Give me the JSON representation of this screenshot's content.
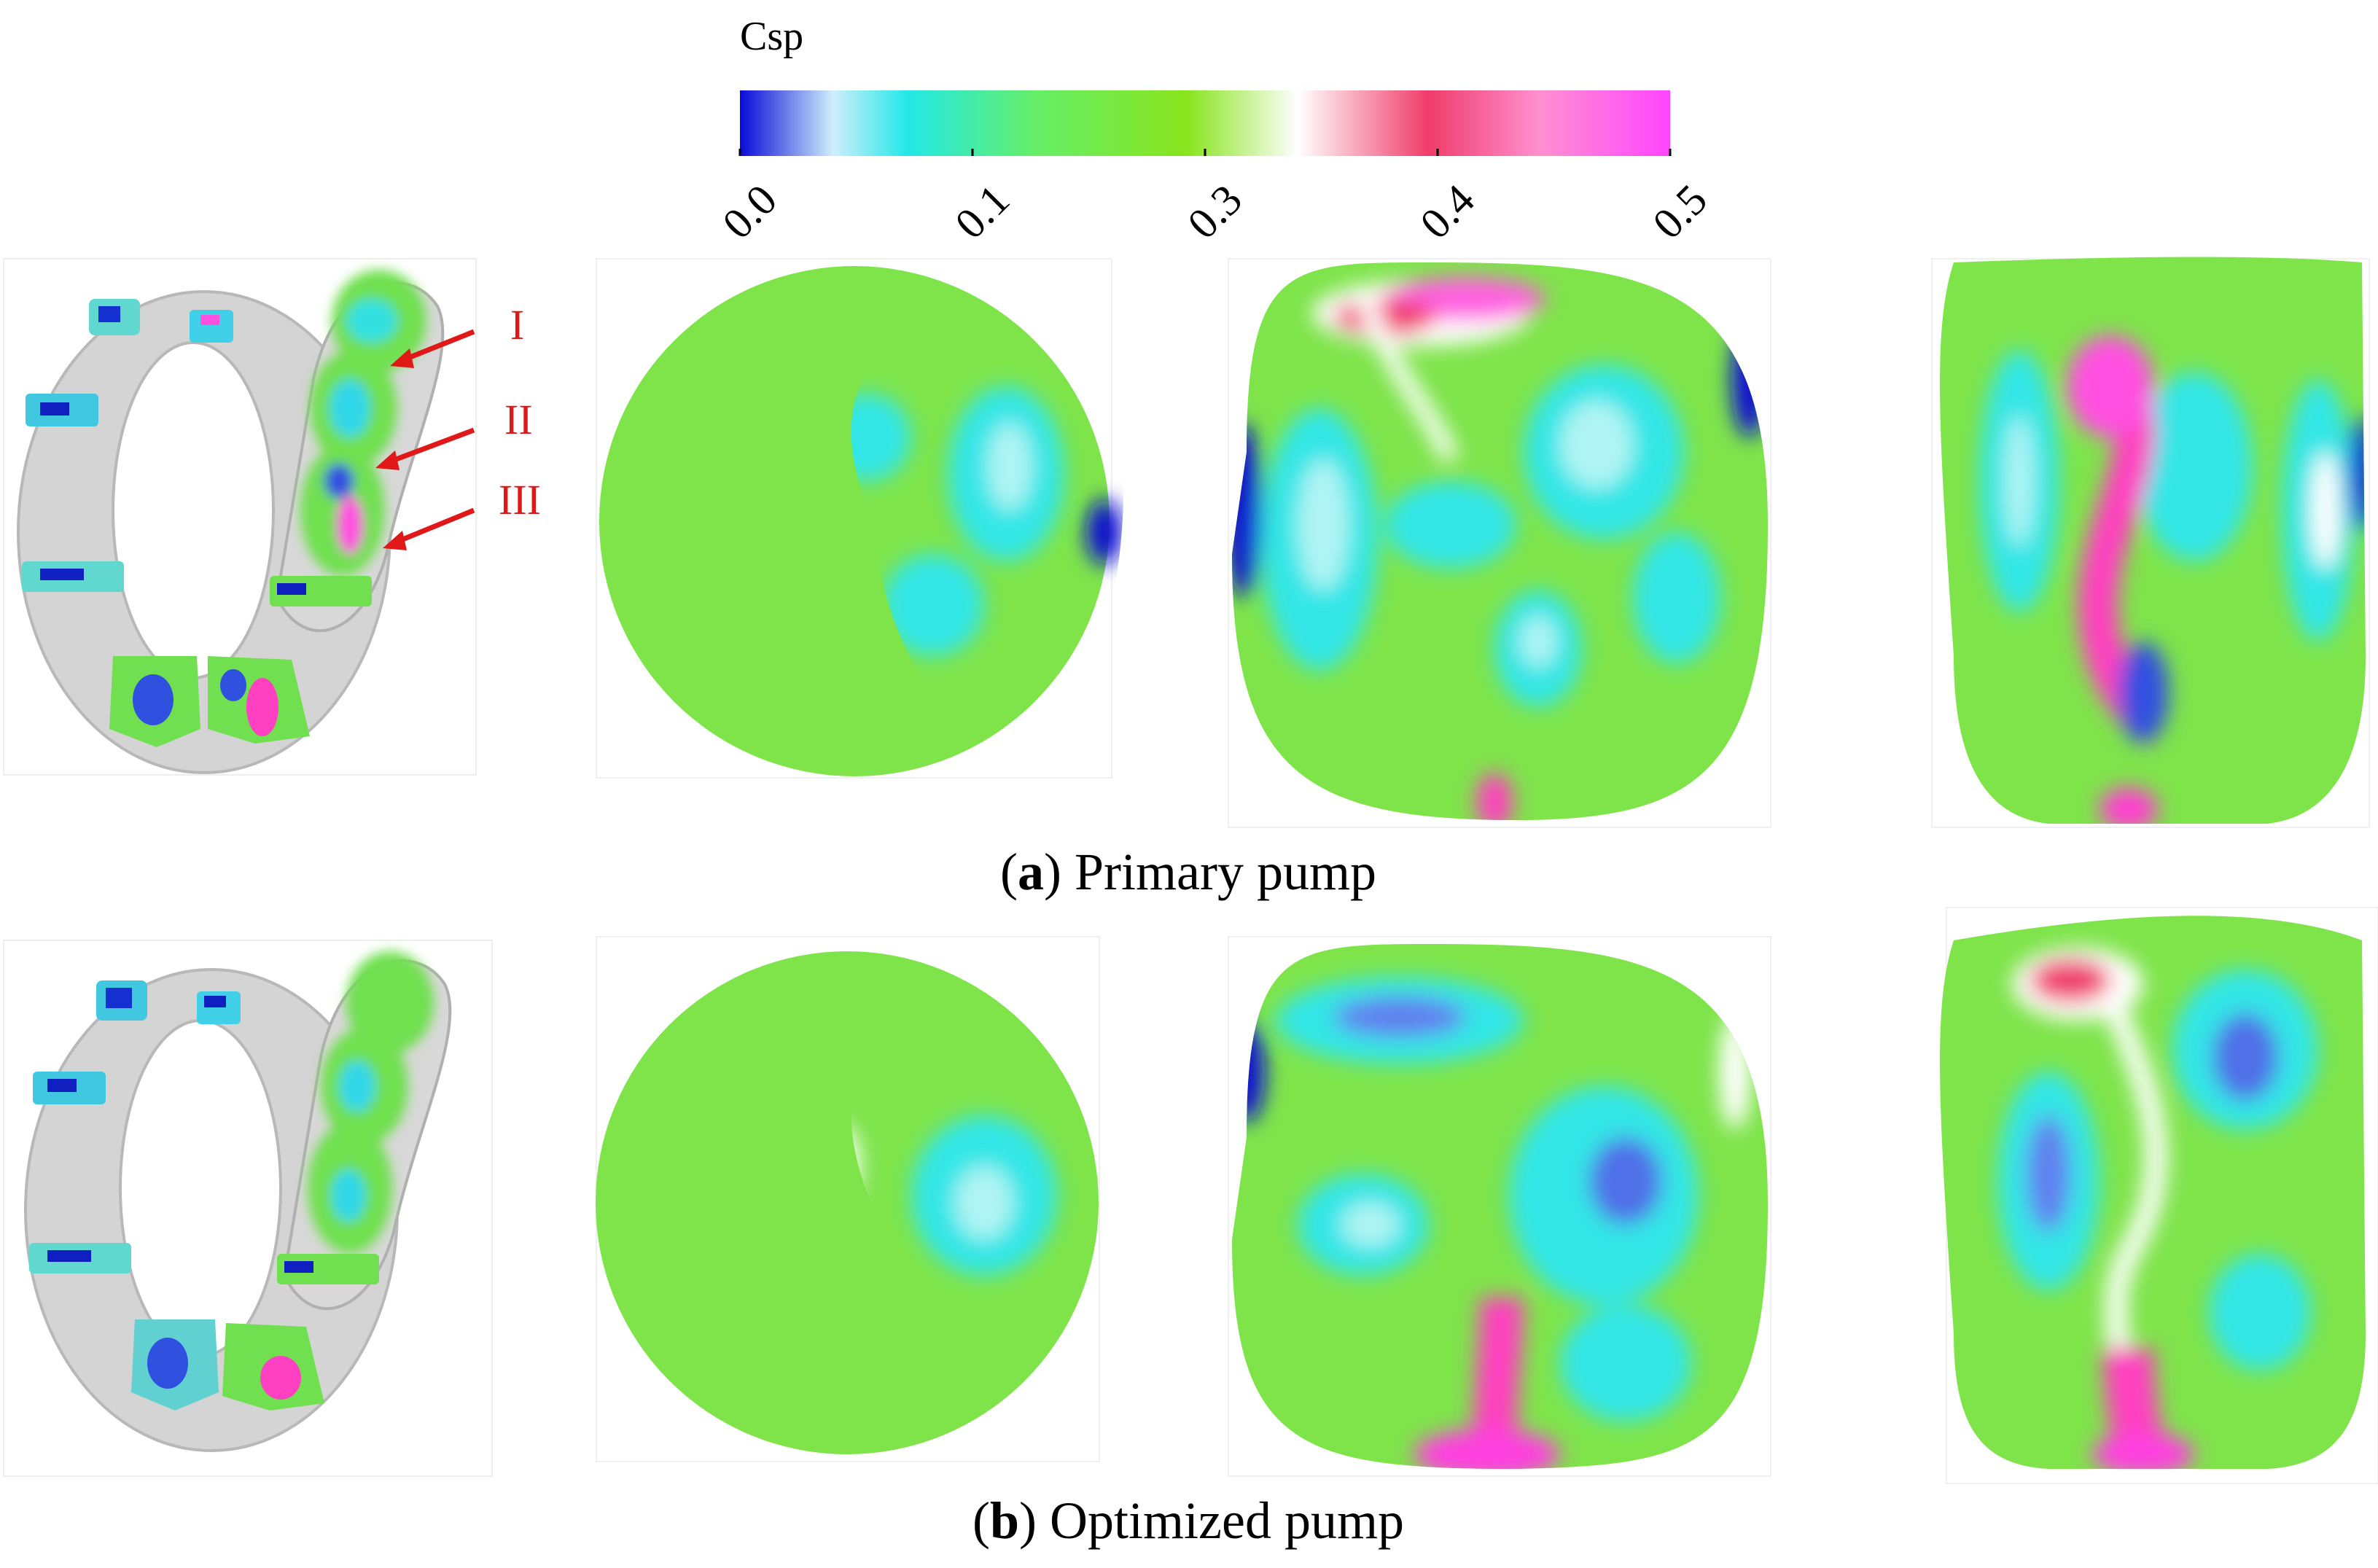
{
  "colorbar": {
    "title": "Csp",
    "min": 0.0,
    "max": 0.5,
    "ticks": [
      {
        "value": 0.0,
        "label": "0.0"
      },
      {
        "value": 0.125,
        "label": "0.1"
      },
      {
        "value": 0.25,
        "label": "0.3"
      },
      {
        "value": 0.375,
        "label": "0.4"
      },
      {
        "value": 0.5,
        "label": "0.5"
      }
    ],
    "stops": [
      {
        "value": 0.0,
        "color": "#0a0ad8"
      },
      {
        "value": 0.05,
        "color": "#cfeefb"
      },
      {
        "value": 0.09,
        "color": "#22e8e8"
      },
      {
        "value": 0.16,
        "color": "#66ee66"
      },
      {
        "value": 0.24,
        "color": "#88e41c"
      },
      {
        "value": 0.3,
        "color": "#ffffff"
      },
      {
        "value": 0.37,
        "color": "#f03c6a"
      },
      {
        "value": 0.43,
        "color": "#ff90d0"
      },
      {
        "value": 0.5,
        "color": "#ff44ff"
      }
    ]
  },
  "section_labels": [
    "I",
    "II",
    "III"
  ],
  "panels": [
    {
      "letter": "a",
      "text": " Primary pump"
    },
    {
      "letter": "b",
      "text": " Optimized pump"
    }
  ],
  "colors": {
    "arrow": "#e01818",
    "casing": "#c8c8c8",
    "low": "#1010d0",
    "cyan": "#30e6e6",
    "green": "#80e828",
    "pink": "#ff44dd",
    "red": "#f04070"
  }
}
